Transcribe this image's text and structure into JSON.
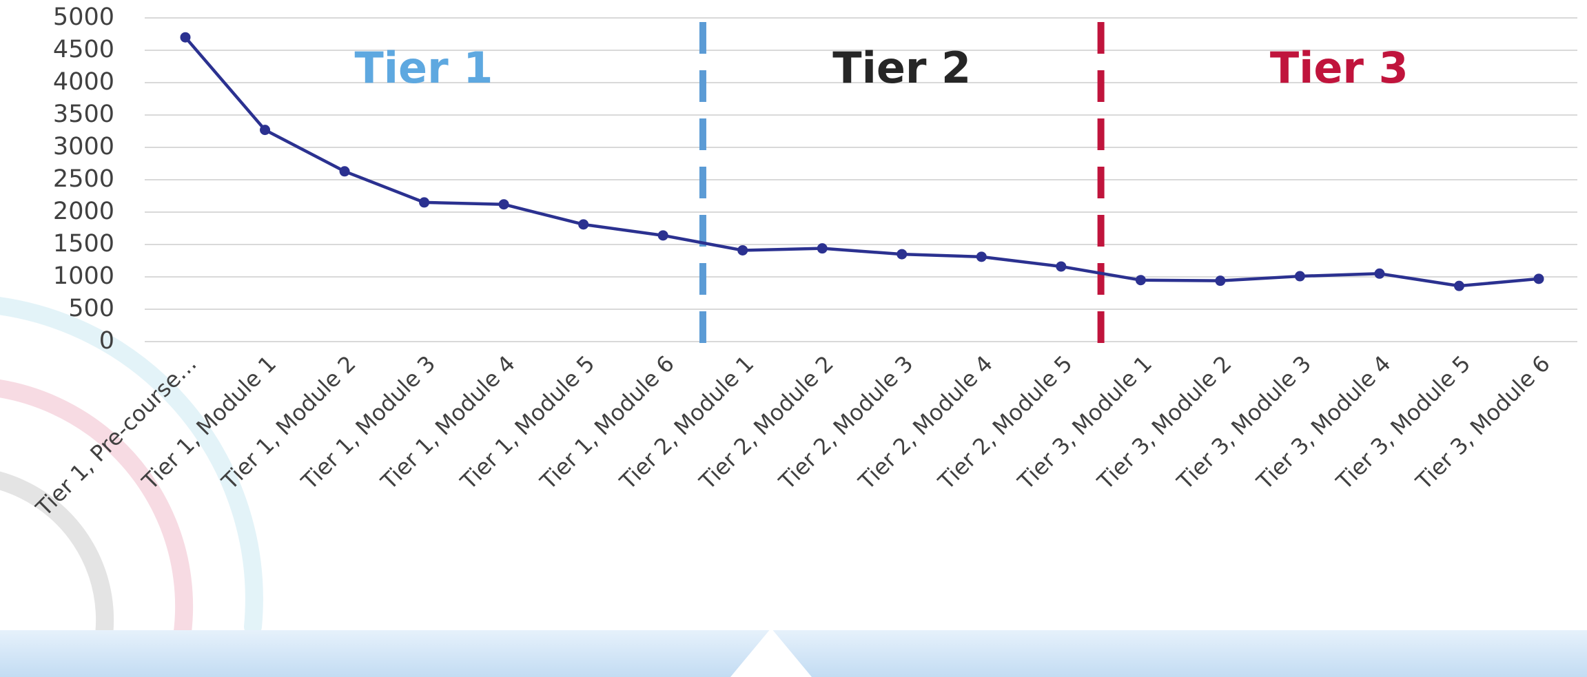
{
  "chart_data": {
    "type": "line",
    "categories": [
      "Tier 1, Pre-course…",
      "Tier 1, Module 1",
      "Tier 1, Module 2",
      "Tier 1, Module 3",
      "Tier 1, Module 4",
      "Tier 1, Module 5",
      "Tier 1, Module 6",
      "Tier 2, Module 1",
      "Tier 2, Module 2",
      "Tier 2, Module 3",
      "Tier 2, Module 4",
      "Tier 2, Module 5",
      "Tier 3, Module 1",
      "Tier 3, Module 2",
      "Tier 3, Module 3",
      "Tier 3, Module 4",
      "Tier 3, Module 5",
      "Tier 3, Module 6"
    ],
    "values": [
      4700,
      3270,
      2630,
      2150,
      2120,
      1810,
      1640,
      1410,
      1440,
      1350,
      1310,
      1160,
      950,
      940,
      1010,
      1050,
      860,
      970
    ],
    "color": "#2b3190",
    "ylim": [
      0,
      5000
    ],
    "yticks": [
      0,
      500,
      1000,
      1500,
      2000,
      2500,
      3000,
      3500,
      4000,
      4500,
      5000
    ],
    "grid": true,
    "annotations": [
      {
        "text": "Tier 1",
        "color": "#5ea8e0"
      },
      {
        "text": "Tier 2",
        "color": "#262626"
      },
      {
        "text": "Tier 3",
        "color": "#c0143c"
      }
    ]
  }
}
